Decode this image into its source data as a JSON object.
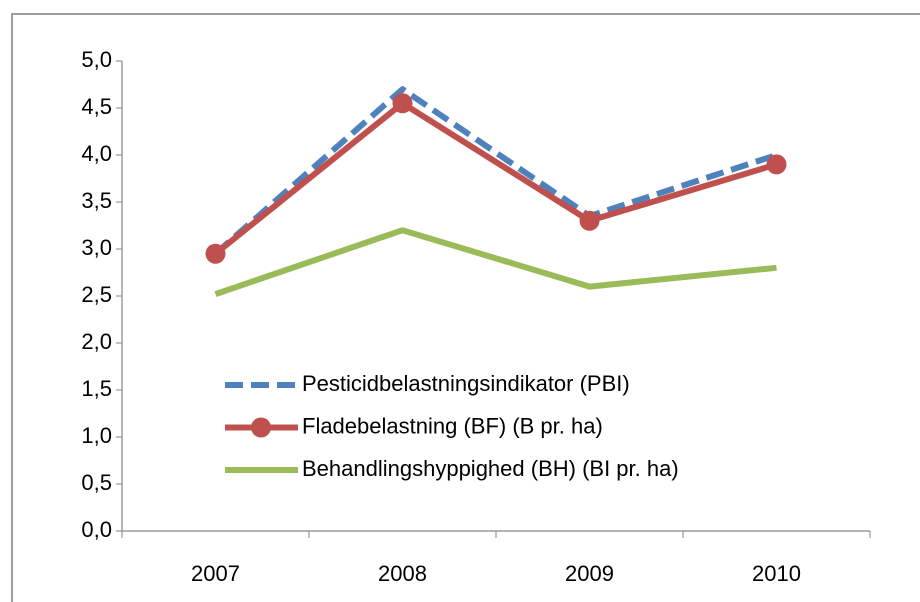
{
  "chart_data": {
    "type": "line",
    "categories": [
      "2007",
      "2008",
      "2009",
      "2010"
    ],
    "series": [
      {
        "name": "Pesticidbelastningsindikator (PBI)",
        "color": "#4f81bd",
        "dash": true,
        "values": [
          2.95,
          4.7,
          3.35,
          4.0
        ]
      },
      {
        "name": "Fladebelastning (BF) (B pr. ha)",
        "color": "#c0504d",
        "marker": "circle",
        "values": [
          2.95,
          4.55,
          3.3,
          3.9
        ]
      },
      {
        "name": "Behandlingshyppighed (BH) (BI pr. ha)",
        "color": "#9bbb59",
        "values": [
          2.52,
          3.2,
          2.6,
          2.8
        ]
      }
    ],
    "ylim": [
      0,
      5
    ],
    "yticks": [
      {
        "value": 0,
        "label": "0,0"
      },
      {
        "value": 0.5,
        "label": "0,5"
      },
      {
        "value": 1,
        "label": "1,0"
      },
      {
        "value": 1.5,
        "label": "1,5"
      },
      {
        "value": 2,
        "label": "2,0"
      },
      {
        "value": 2.5,
        "label": "2,5"
      },
      {
        "value": 3,
        "label": "3,0"
      },
      {
        "value": 3.5,
        "label": "3,5"
      },
      {
        "value": 4,
        "label": "4,0"
      },
      {
        "value": 4.5,
        "label": "4,5"
      },
      {
        "value": 5,
        "label": "5,0"
      }
    ],
    "grid": false
  }
}
